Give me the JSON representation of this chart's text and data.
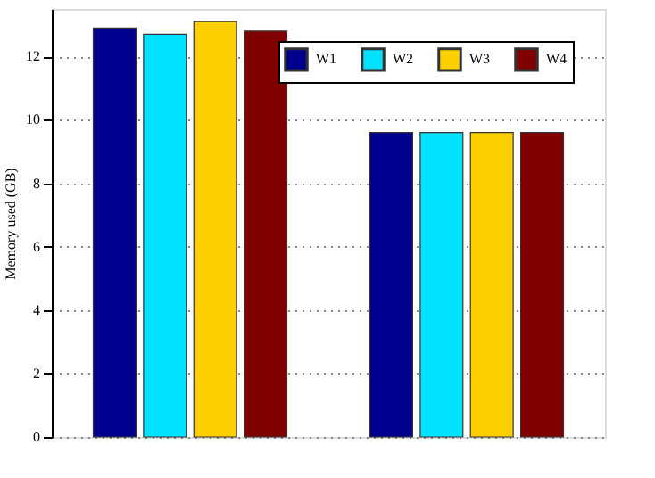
{
  "chart_data": {
    "type": "bar",
    "ylabel": "Memory used (GB)",
    "categories": [
      null,
      null
    ],
    "series": [
      {
        "name": "W1",
        "color": "#00008f",
        "values": [
          12.9,
          9.6
        ]
      },
      {
        "name": "W2",
        "color": "#00e0ff",
        "values": [
          12.7,
          9.6
        ]
      },
      {
        "name": "W3",
        "color": "#ffd000",
        "values": [
          13.1,
          9.6
        ]
      },
      {
        "name": "W4",
        "color": "#800000",
        "values": [
          12.8,
          9.6
        ]
      }
    ],
    "ylim": [
      0,
      13.5
    ],
    "yticks": [
      0,
      2,
      4,
      6,
      8,
      10,
      12
    ],
    "grid": "y",
    "legend": "top right"
  }
}
